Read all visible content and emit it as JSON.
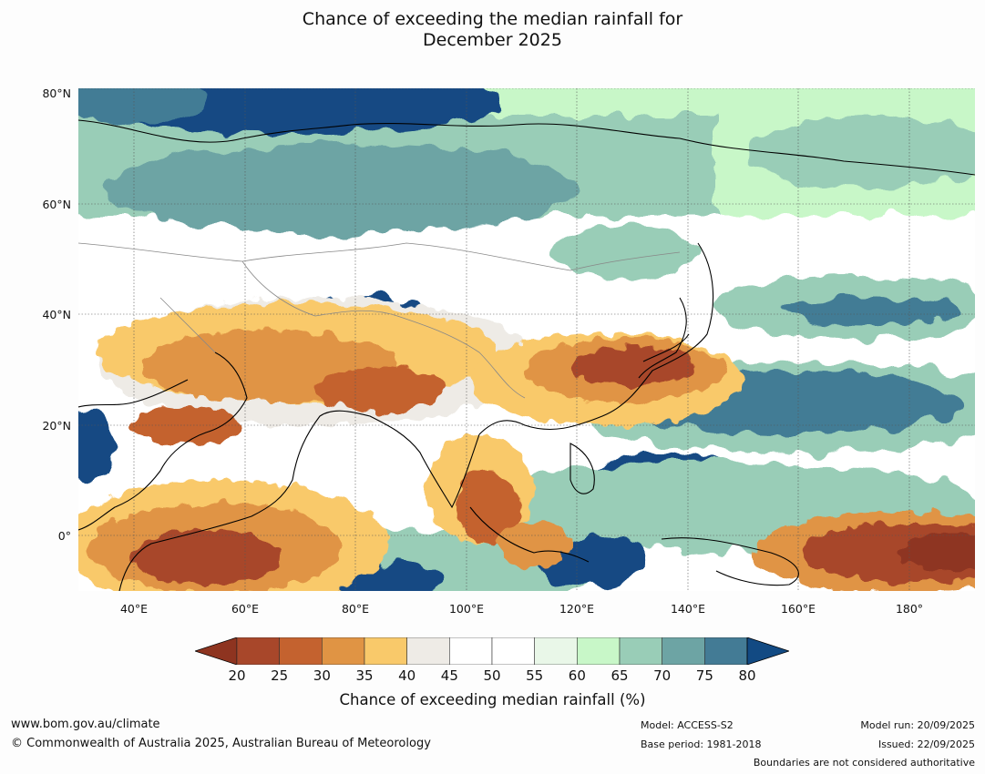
{
  "title": {
    "line1": "Chance of exceeding the median rainfall for",
    "line2": "December 2025"
  },
  "map": {
    "lat_labels": [
      "80°N",
      "60°N",
      "40°N",
      "20°N",
      "0°"
    ],
    "lon_labels": [
      "40°E",
      "60°E",
      "80°E",
      "100°E",
      "120°E",
      "140°E",
      "160°E",
      "180°"
    ]
  },
  "colorbar": {
    "ticks": [
      "20",
      "25",
      "30",
      "35",
      "40",
      "45",
      "50",
      "55",
      "60",
      "65",
      "70",
      "75",
      "80"
    ],
    "colors": [
      "#a8472a",
      "#c4622f",
      "#e09444",
      "#f9c96a",
      "#eeebe6",
      "#ffffff",
      "#ffffff",
      "#e9f7e8",
      "#c8f7c8",
      "#99cdb7",
      "#6da4a4",
      "#437b95"
    ],
    "under_color": "#8e3420",
    "over_color": "#124a83",
    "label": "Chance of exceeding median rainfall (%)"
  },
  "footer": {
    "url": "www.bom.gov.au/climate",
    "copyright": "© Commonwealth of Australia 2025, Australian Bureau of Meteorology",
    "model": "Model: ACCESS-S2",
    "base_period": "Base period: 1981-2018",
    "model_run": "Model run: 20/09/2025",
    "issued": "Issued: 22/09/2025",
    "disclaimer": "Boundaries are not considered authoritative"
  }
}
